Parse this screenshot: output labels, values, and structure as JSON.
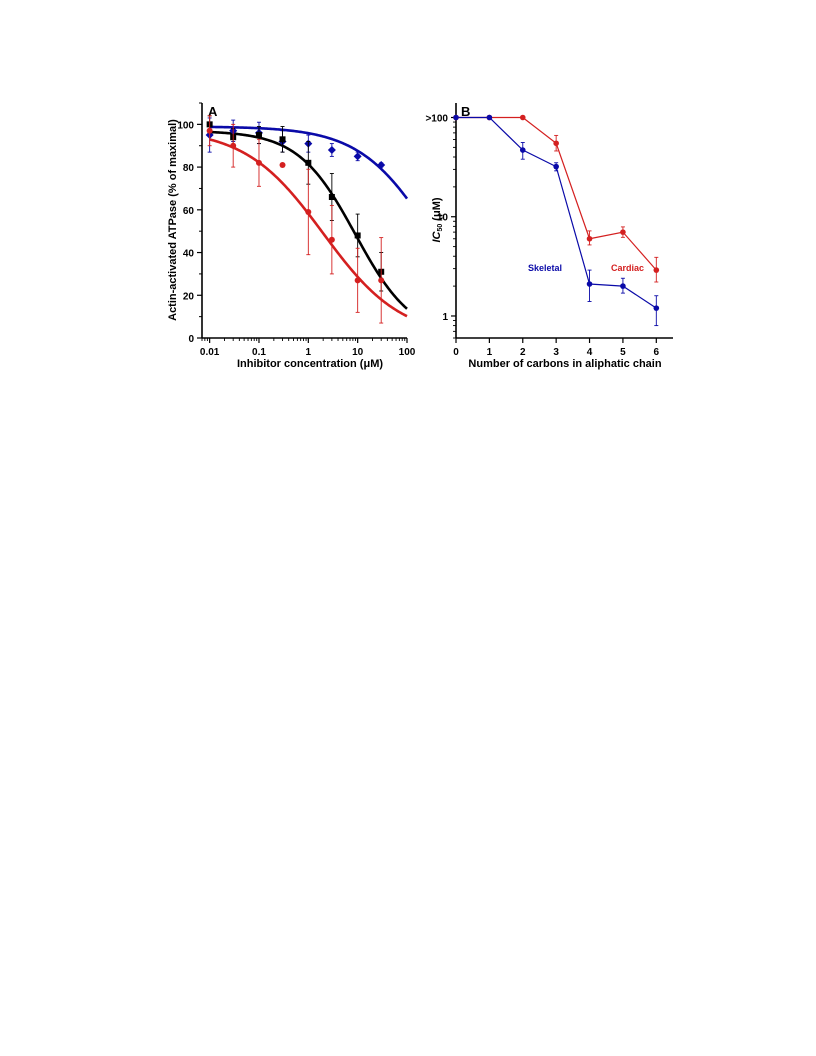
{
  "chart_data": [
    {
      "panel_label": "A",
      "type": "scatter",
      "xlabel": "Inhibitor concentration (μM)",
      "ylabel": "Actin-activated ATPase (% of maximal)",
      "xscale": "log",
      "xlim": [
        0.007,
        100
      ],
      "ylim": [
        0,
        110
      ],
      "x_tick_labels": [
        {
          "value": 0.01,
          "label": "0.01"
        },
        {
          "value": 0.1,
          "label": "0.1"
        },
        {
          "value": 1,
          "label": "1"
        },
        {
          "value": 10,
          "label": "10"
        },
        {
          "value": 100,
          "label": "100"
        }
      ],
      "y_tick_labels": [
        {
          "value": 0,
          "label": "0"
        },
        {
          "value": 20,
          "label": "20"
        },
        {
          "value": 40,
          "label": "40"
        },
        {
          "value": 60,
          "label": "60"
        },
        {
          "value": 80,
          "label": "80"
        },
        {
          "value": 100,
          "label": "100"
        }
      ],
      "series": [
        {
          "color": "#0a0aa8",
          "marker": "diamond",
          "x": [
            0.01,
            0.03,
            0.1,
            0.3,
            1,
            3,
            10,
            30
          ],
          "y": [
            95,
            97,
            96,
            92,
            91,
            88,
            85,
            81
          ],
          "err": [
            8,
            5,
            5,
            5,
            4,
            3,
            2,
            1
          ],
          "fit_ic50": 300,
          "fit_top": 99,
          "fit_hill": 0.6
        },
        {
          "color": "#000000",
          "marker": "square",
          "x": [
            0.01,
            0.03,
            0.1,
            0.3,
            1,
            3,
            10,
            30
          ],
          "y": [
            100,
            94,
            95,
            93,
            82,
            66,
            48,
            31
          ],
          "err": [
            4,
            4,
            4,
            6,
            10,
            11,
            10,
            9
          ],
          "fit_ic50": 9,
          "fit_top": 97,
          "fit_hill": 0.75
        },
        {
          "color": "#d42020",
          "marker": "circle",
          "x": [
            0.01,
            0.03,
            0.1,
            0.3,
            1,
            3,
            10,
            30
          ],
          "y": [
            97,
            90,
            82,
            81,
            59,
            46,
            27,
            27
          ],
          "err": [
            7,
            10,
            11,
            0,
            20,
            16,
            15,
            20
          ],
          "fit_ic50": 2,
          "fit_top": 98,
          "fit_hill": 0.55
        }
      ]
    },
    {
      "panel_label": "B",
      "type": "line",
      "xlabel": "Number of carbons in aliphatic chain",
      "ylabel": "IC50 (μM)",
      "ylabel_main": "IC",
      "ylabel_sub": "50",
      "ylabel_unit": " (μM)",
      "yscale": "log",
      "xlim": [
        0,
        6.5
      ],
      "ylim": [
        0.6,
        140
      ],
      "x_tick_labels": [
        {
          "value": 0,
          "label": "0"
        },
        {
          "value": 1,
          "label": "1"
        },
        {
          "value": 2,
          "label": "2"
        },
        {
          "value": 3,
          "label": "3"
        },
        {
          "value": 4,
          "label": "4"
        },
        {
          "value": 5,
          "label": "5"
        },
        {
          "value": 6,
          "label": "6"
        }
      ],
      "y_tick_labels": [
        {
          "value": 100,
          "label": ">100"
        },
        {
          "value": 10,
          "label": "10"
        },
        {
          "value": 1,
          "label": "1"
        }
      ],
      "series": [
        {
          "name": "Cardiac",
          "color": "#d42020",
          "x": [
            0,
            1,
            2,
            3,
            4,
            5,
            6
          ],
          "y": [
            100,
            100,
            100,
            55,
            6,
            7,
            2.9
          ],
          "err_low": [
            0,
            0,
            0,
            46,
            5.2,
            6.2,
            2.2
          ],
          "err_high": [
            0,
            0,
            0,
            66,
            7.2,
            7.9,
            3.9
          ]
        },
        {
          "name": "Skeletal",
          "color": "#0a0aa8",
          "x": [
            0,
            1,
            2,
            3,
            4,
            5,
            6
          ],
          "y": [
            100,
            100,
            47,
            32,
            2.1,
            2.0,
            1.2
          ],
          "err_low": [
            0,
            0,
            38,
            29,
            1.4,
            1.7,
            0.8
          ],
          "err_high": [
            0,
            0,
            56,
            35,
            2.9,
            2.4,
            1.6
          ]
        }
      ]
    }
  ]
}
